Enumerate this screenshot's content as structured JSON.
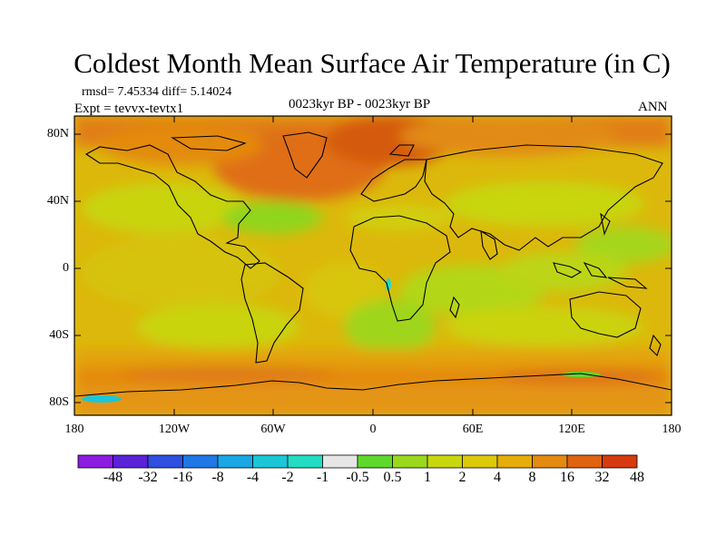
{
  "title": "Coldest Month Mean Surface Air Temperature (in C)",
  "stats": {
    "rmsd_diff": "rmsd= 7.45334 diff= 5.14024",
    "expt": "Expt = tevvx-tevtx1",
    "period": "0023kyr BP - 0023kyr BP",
    "season": "ANN"
  },
  "map": {
    "lat_labels": [
      "80N",
      "40N",
      "0",
      "40S",
      "80S"
    ],
    "lon_labels": [
      "180",
      "120W",
      "60W",
      "0",
      "60E",
      "120E",
      "180"
    ]
  },
  "colorbar": {
    "colors": [
      "#8c1ce0",
      "#5a22d9",
      "#2f4fe0",
      "#1f78e6",
      "#19a7e6",
      "#1bc6d6",
      "#22dcc3",
      "#e6e6e6",
      "#5ed92b",
      "#9ad81d",
      "#c8d60d",
      "#dcc90a",
      "#e6ad0a",
      "#e48a10",
      "#df6311",
      "#d63a0e"
    ],
    "labels": [
      "-48",
      "-32",
      "-16",
      "-8",
      "-4",
      "-2",
      "-1",
      "-0.5",
      "0.5",
      "1",
      "2",
      "4",
      "8",
      "16",
      "32",
      "48"
    ]
  }
}
